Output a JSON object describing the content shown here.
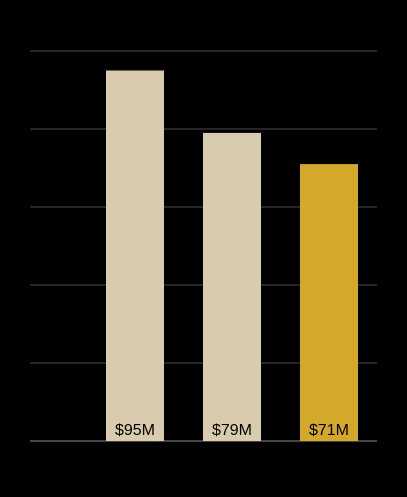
{
  "chart_data": {
    "type": "bar",
    "categories": [
      null,
      null,
      null
    ],
    "values": [
      95,
      79,
      71
    ],
    "value_labels": [
      "$95M",
      "$79M",
      "$71M"
    ],
    "colors": [
      "#d9cbad",
      "#d9cbad",
      "#d4a82a"
    ],
    "ylim": [
      0,
      100
    ],
    "yticks": [
      0,
      20,
      40,
      60,
      80,
      100
    ],
    "grid": true
  }
}
